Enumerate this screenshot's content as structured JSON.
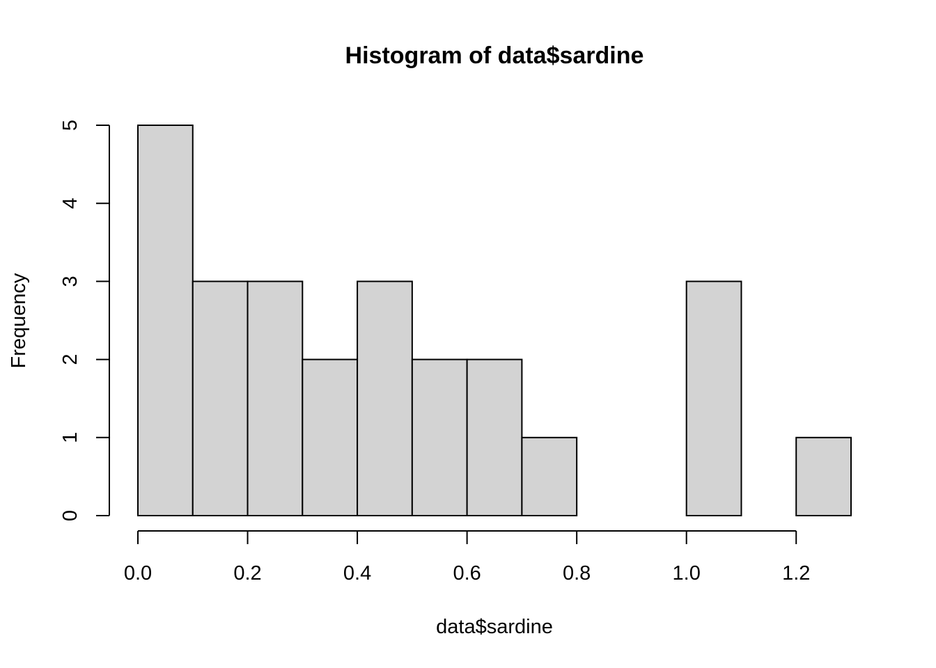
{
  "chart_data": {
    "type": "bar",
    "title": "Histogram of data$sardine",
    "xlabel": "data$sardine",
    "ylabel": "Frequency",
    "bin_edges": [
      0.0,
      0.1,
      0.2,
      0.3,
      0.4,
      0.5,
      0.6,
      0.7,
      0.8,
      0.9,
      1.0,
      1.1,
      1.2,
      1.3
    ],
    "values": [
      5,
      3,
      3,
      2,
      3,
      2,
      2,
      1,
      0,
      0,
      3,
      0,
      1
    ],
    "xlim": [
      0.0,
      1.3
    ],
    "ylim": [
      0,
      5
    ],
    "x_ticks": [
      0.0,
      0.2,
      0.4,
      0.6,
      0.8,
      1.0,
      1.2
    ],
    "x_tick_labels": [
      "0.0",
      "0.2",
      "0.4",
      "0.6",
      "0.8",
      "1.0",
      "1.2"
    ],
    "y_ticks": [
      0,
      1,
      2,
      3,
      4,
      5
    ],
    "y_tick_labels": [
      "0",
      "1",
      "2",
      "3",
      "4",
      "5"
    ],
    "bar_color": "#d3d3d3",
    "grid": false,
    "legend": "none"
  }
}
